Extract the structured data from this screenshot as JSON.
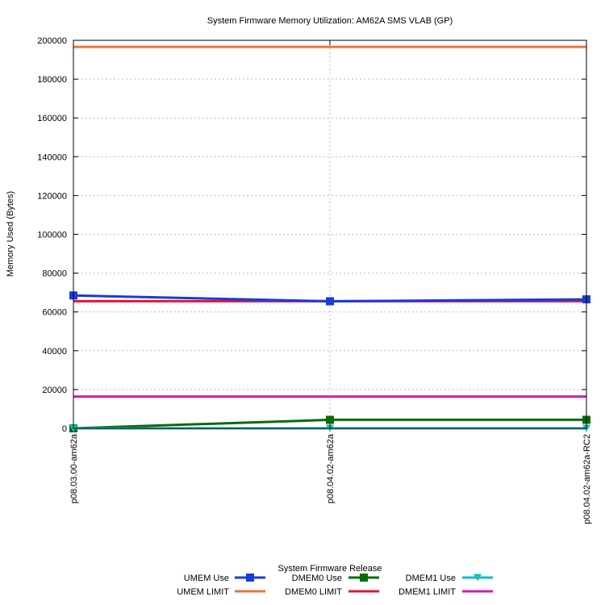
{
  "chart_data": {
    "type": "line",
    "title": "System Firmware Memory Utilization: AM62A SMS VLAB (GP)",
    "xlabel": "System Firmware Release",
    "ylabel": "Memory Used (Bytes)",
    "categories": [
      "p08.03.00-am62a",
      "p08.04.02-am62a",
      "p08.04.02-am62a-RC2"
    ],
    "ylim": [
      0,
      200000
    ],
    "yticks": [
      "0",
      "20000",
      "40000",
      "60000",
      "80000",
      "100000",
      "120000",
      "140000",
      "160000",
      "180000",
      "200000"
    ],
    "grid": true,
    "legend_position": "bottom",
    "series": [
      {
        "name": "UMEM Use",
        "values": [
          68500,
          65500,
          66500
        ],
        "color": "#1a3bd6",
        "marker": "square"
      },
      {
        "name": "DMEM0 Use",
        "values": [
          0,
          4400,
          4400
        ],
        "color": "#0a6b0a",
        "marker": "square"
      },
      {
        "name": "DMEM1 Use",
        "values": [
          0,
          0,
          0
        ],
        "color": "#17bdbd",
        "marker": "triangle-down"
      },
      {
        "name": "UMEM LIMIT",
        "values": [
          196608,
          196608,
          196608
        ],
        "color": "#f07242",
        "marker": "none"
      },
      {
        "name": "DMEM0 LIMIT",
        "values": [
          65536,
          65536,
          65536
        ],
        "color": "#e0143c",
        "marker": "none"
      },
      {
        "name": "DMEM1 LIMIT",
        "values": [
          16384,
          16384,
          16384
        ],
        "color": "#d11ab8",
        "marker": "none"
      }
    ]
  }
}
